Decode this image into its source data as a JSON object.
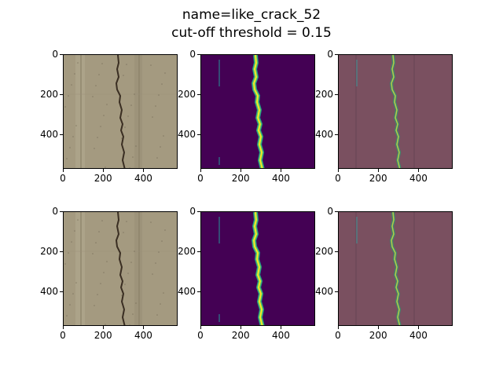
{
  "figure": {
    "title_line1": "name=like_crack_52",
    "title_line2": "cut-off threshold = 0.15"
  },
  "axes": {
    "x_ticks": [
      "0",
      "200",
      "400"
    ],
    "y_ticks": [
      "0",
      "200",
      "400"
    ]
  },
  "panels": [
    {
      "row": 1,
      "col": 1,
      "kind": "concrete-photo"
    },
    {
      "row": 1,
      "col": 2,
      "kind": "prediction-heatmap"
    },
    {
      "row": 1,
      "col": 3,
      "kind": "overlay"
    },
    {
      "row": 2,
      "col": 1,
      "kind": "concrete-photo"
    },
    {
      "row": 2,
      "col": 2,
      "kind": "label-heatmap"
    },
    {
      "row": 2,
      "col": 3,
      "kind": "overlay"
    }
  ],
  "colors": {
    "concrete": "#a49a80",
    "heatmap_bg": "#440154",
    "heatmap_hi": "#fde725",
    "overlay_bg": "#7a5060"
  }
}
